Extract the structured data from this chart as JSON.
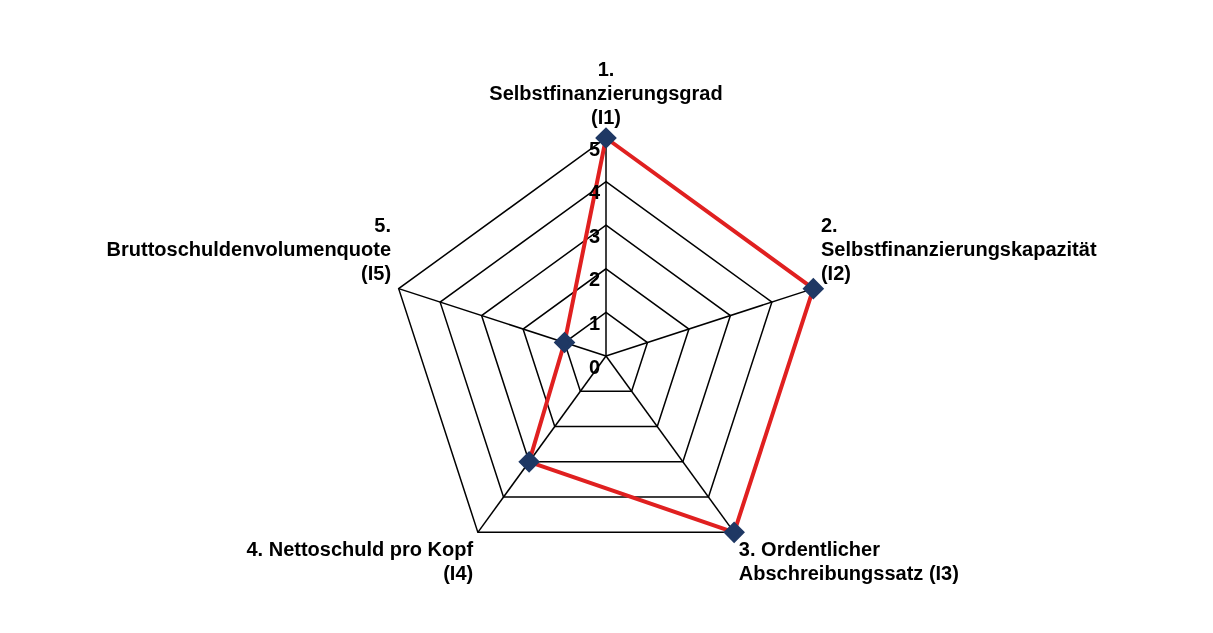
{
  "chart_data": {
    "type": "radar",
    "categories": [
      "1. Selbstfinanzierungsgrad (I1)",
      "2. Selbstfinanzierungskapazität (I2)",
      "3. Ordentlicher Abschreibungssatz (I3)",
      "4. Nettoschuld pro Kopf (I4)",
      "5. Bruttoschuldenvolumenquote (I5)"
    ],
    "series": [
      {
        "color": "#e02020",
        "values": [
          5,
          5,
          5,
          3,
          1
        ]
      }
    ],
    "ylim": [
      0,
      5
    ],
    "yticks": [
      0,
      1,
      2,
      3,
      4,
      5
    ],
    "grid": true,
    "legend": false,
    "marker": "diamond",
    "line_style": "solid"
  }
}
